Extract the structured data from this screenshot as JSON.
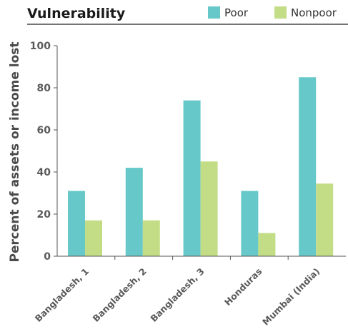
{
  "chart_data": {
    "type": "bar",
    "title": "Vulnerability",
    "xlabel": "",
    "ylabel": "Percent of assets or income lost",
    "ylim": [
      0,
      100
    ],
    "yticks": [
      0,
      20,
      40,
      60,
      80,
      100
    ],
    "grid": false,
    "legend_position": "top-right",
    "categories": [
      "Bangladesh, 1",
      "Bangladesh, 2",
      "Bangladesh, 3",
      "Honduras",
      "Mumbai (India)"
    ],
    "series": [
      {
        "name": "Poor",
        "color": "#66c8c8",
        "values": [
          31,
          42,
          74,
          31,
          85
        ]
      },
      {
        "name": "Nonpoor",
        "color": "#c3dd86",
        "values": [
          17,
          17,
          45,
          11,
          34.5
        ]
      }
    ]
  }
}
